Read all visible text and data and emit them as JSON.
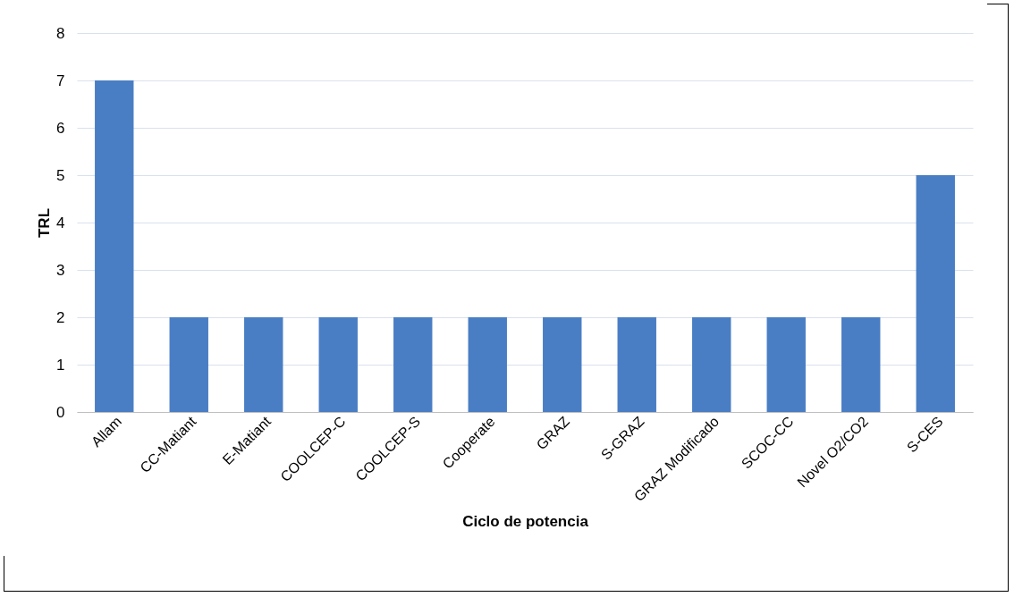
{
  "chart_data": {
    "type": "bar",
    "xlabel": "Ciclo de potencia",
    "ylabel": "TRL",
    "categories": [
      "Allam",
      "CC-Matiant",
      "E-Matiant",
      "COOLCEP-C",
      "COOLCEP-S",
      "Cooperate",
      "GRAZ",
      "S-GRAZ",
      "GRAZ Modificado",
      "SCOC-CC",
      "Novel O2/CO2",
      "S-CES"
    ],
    "values": [
      7,
      2,
      2,
      2,
      2,
      2,
      2,
      2,
      2,
      2,
      2,
      5
    ],
    "color": "#4a7ec4",
    "ylim": [
      0,
      8
    ],
    "yticks": [
      0,
      1,
      2,
      3,
      4,
      5,
      6,
      7,
      8
    ],
    "grid": "y"
  }
}
